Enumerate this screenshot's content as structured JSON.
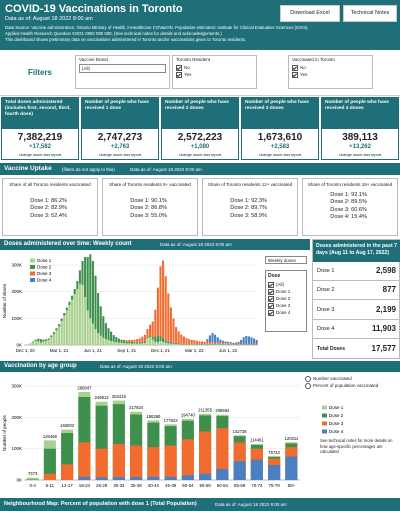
{
  "header": {
    "title": "COVID-19 Vaccinations in Toronto",
    "date": "Data as of: August 18 2022 8:00 am",
    "source": [
      "Data Source: Vaccine administration, Ontario Ministry of Health, inHealthcare COVaxON. Population estimates: Institute for Clinical Evaluative Sciences (ICES).",
      "Applied Health Research Question #2021 0950 080 000. (See technical notes for details and acknowledgements.)",
      "This dashboard shows preliminary data on vaccinations administered in Toronto and/or vaccinations given to Toronto residents."
    ],
    "buttons": [
      "Download Excel",
      "Technical Notes"
    ]
  },
  "filters": {
    "label": "Filters",
    "groups": [
      {
        "title": "Vaccine Brand",
        "control": "dropdown",
        "options": [
          "(All)"
        ]
      },
      {
        "title": "Toronto Resident",
        "control": "checkbox",
        "options": [
          "No",
          "Yes"
        ]
      },
      {
        "title": "Vaccinated in Toronto",
        "control": "checkbox",
        "options": [
          "No",
          "Yes"
        ]
      }
    ]
  },
  "kpis": [
    {
      "label": "Total doses administered (includes first, second, third, fourth dose)",
      "value": "7,382,219",
      "change": "+17,582",
      "note": "change since last report"
    },
    {
      "label": "Number of people who have received 1 dose",
      "value": "2,747,273",
      "change": "+2,763",
      "note": "change since last report"
    },
    {
      "label": "Number of people who have received 2 doses",
      "value": "2,572,223",
      "change": "+1,080",
      "note": "change since last report"
    },
    {
      "label": "Number of people who have received 3 doses",
      "value": "1,673,610",
      "change": "+2,583",
      "note": "change since last report"
    },
    {
      "label": "Number of people who have received 4 doses",
      "value": "389,113",
      "change": "+13,262",
      "note": "change since last report"
    }
  ],
  "uptake": {
    "title": "Vaccine Uptake",
    "note": "(filters do not apply to this)",
    "date": "Data as of: August 18 2022 8:00 am",
    "cards": [
      {
        "title": "Share of all Toronto residents vaccinated",
        "lines": [
          "Dose 1: 86.2%",
          "Dose 2: 82.9%",
          "Dose 3: 52.4%"
        ]
      },
      {
        "title": "Share of Toronto residents 5+ vaccinated",
        "lines": [
          "Dose 1: 90.1%",
          "Dose 2: 86.8%",
          "Dose 3: 55.0%"
        ]
      },
      {
        "title": "Share of Toronto residents 12+ vaccinated",
        "lines": [
          "Dose 1: 92.3%",
          "Dose 2: 89.7%",
          "Dose 3: 58.9%"
        ]
      },
      {
        "title": "Share of Toronto residents 18+ vaccinated",
        "lines": [
          "Dose 1: 92.1%",
          "Dose 2: 89.5%",
          "Dose 3: 60.6%",
          "Dose 4: 15.4%"
        ]
      }
    ]
  },
  "recent": {
    "title": "Doses administered in the past 7 days (Aug 11 to Aug 17, 2022)",
    "rows": [
      [
        "Dose 1",
        "2,598"
      ],
      [
        "Dose 2",
        "877"
      ],
      [
        "Dose 3",
        "2,199"
      ],
      [
        "Dose 4",
        "11,903"
      ],
      [
        "Total Doses",
        "17,577"
      ]
    ]
  },
  "weekly_controls": {
    "dropdown": "Weekly doses",
    "legend_title": "Dose",
    "options": [
      "(All)",
      "Dose 1",
      "Dose 2",
      "Dose 3",
      "Dose 4"
    ]
  },
  "age_controls": {
    "options": [
      "Number vaccinated",
      "Percent of population vaccinated"
    ],
    "note": "See technical notes for more details on how age-specific percentages are calculated"
  },
  "map": {
    "title": "Neighbourhood Map: Percent of population with dose 1 (Total Population)",
    "date": "Data as of: August 18 2022 8:00 am"
  },
  "chart_data": [
    {
      "type": "bar",
      "bar_mode": "stack",
      "title": "Doses administered over time: Weekly count",
      "subtitle": "Data as of: August 18 2022 8:00 am",
      "y_label": "Number of doses",
      "legend": "top-left",
      "grid": true,
      "categories": [
        "Dec 1, 20",
        null,
        null,
        null,
        null,
        null,
        null,
        null,
        null,
        null,
        null,
        null,
        null,
        "Mar 1, 21",
        null,
        null,
        null,
        null,
        null,
        null,
        null,
        null,
        null,
        null,
        null,
        null,
        "Jun 1, 21",
        null,
        null,
        null,
        null,
        null,
        null,
        null,
        null,
        null,
        null,
        null,
        null,
        "Sep 1, 21",
        null,
        null,
        null,
        null,
        null,
        null,
        null,
        null,
        null,
        null,
        null,
        null,
        "Dec 1, 21",
        null,
        null,
        null,
        null,
        null,
        null,
        null,
        null,
        null,
        null,
        null,
        null,
        "Mar 1, 22",
        null,
        null,
        null,
        null,
        null,
        null,
        null,
        null,
        null,
        null,
        null,
        null,
        "Jun 1, 22",
        null,
        null,
        null,
        null,
        null,
        null,
        null,
        null,
        null,
        null,
        null
      ],
      "ylim": [
        0,
        330000
      ],
      "yticks": [
        {
          "value": 0,
          "label": "0K"
        },
        {
          "value": 100000,
          "label": "100K"
        },
        {
          "value": 200000,
          "label": "200K"
        },
        {
          "value": 300000,
          "label": "300K"
        }
      ],
      "series": [
        {
          "name": "Dose 1",
          "color": "#a9d18e",
          "values": [
            0,
            3000,
            8000,
            12000,
            15000,
            14000,
            10000,
            12000,
            15000,
            20000,
            30000,
            40000,
            55000,
            70000,
            90000,
            110000,
            130000,
            150000,
            170000,
            190000,
            210000,
            230000,
            225000,
            180000,
            130000,
            100000,
            80000,
            60000,
            45000,
            35000,
            28000,
            22000,
            18000,
            15000,
            12000,
            10000,
            9000,
            8000,
            7000,
            6000,
            6000,
            5000,
            5000,
            5000,
            5000,
            6000,
            8000,
            25000,
            30000,
            20000,
            12000,
            10000,
            15000,
            12000,
            8000,
            6000,
            5000,
            4000,
            3000,
            3000,
            2000,
            2000,
            2000,
            2000,
            2000,
            2000,
            2000,
            2000,
            2000,
            2000,
            2000,
            2000,
            2000,
            2000,
            2000,
            2000,
            2000,
            2000,
            2000,
            2000,
            1000,
            1000,
            1000,
            1000,
            1000,
            1000,
            1000,
            1000,
            1000,
            1000
          ]
        },
        {
          "name": "Dose 2",
          "color": "#3f8f4f",
          "values": [
            0,
            0,
            0,
            2000,
            5000,
            10000,
            12000,
            8000,
            6000,
            5000,
            6000,
            8000,
            8000,
            8000,
            9000,
            10000,
            10000,
            12000,
            15000,
            20000,
            30000,
            50000,
            90000,
            150000,
            200000,
            240000,
            235000,
            200000,
            150000,
            110000,
            80000,
            60000,
            45000,
            35000,
            25000,
            20000,
            15000,
            12000,
            10000,
            8000,
            7000,
            6000,
            5000,
            5000,
            5000,
            5000,
            5000,
            5000,
            6000,
            8000,
            20000,
            25000,
            20000,
            15000,
            10000,
            8000,
            6000,
            5000,
            4000,
            3000,
            2000,
            2000,
            2000,
            2000,
            2000,
            2000,
            2000,
            2000,
            2000,
            2000,
            2000,
            2000,
            2000,
            2000,
            2000,
            2000,
            2000,
            2000,
            2000,
            2000,
            1000,
            1000,
            1000,
            1000,
            1000,
            1000,
            1000,
            1000,
            1000,
            1000
          ]
        },
        {
          "name": "Dose 3",
          "color": "#f26c2f",
          "values": [
            0,
            0,
            0,
            0,
            0,
            0,
            0,
            0,
            0,
            0,
            0,
            0,
            0,
            0,
            0,
            0,
            0,
            0,
            0,
            0,
            0,
            0,
            0,
            0,
            0,
            0,
            0,
            0,
            0,
            0,
            0,
            0,
            0,
            0,
            0,
            0,
            0,
            0,
            2000,
            4000,
            6000,
            8000,
            10000,
            12000,
            15000,
            20000,
            25000,
            30000,
            40000,
            60000,
            100000,
            180000,
            260000,
            290000,
            240000,
            180000,
            130000,
            90000,
            60000,
            45000,
            35000,
            28000,
            22000,
            18000,
            15000,
            14000,
            12000,
            10000,
            9000,
            8000,
            8000,
            7000,
            6000,
            5000,
            5000,
            4000,
            4000,
            3000,
            3000,
            3000,
            2000,
            2000,
            2000,
            2000,
            2000,
            2000,
            2000,
            2000,
            2000,
            2000
          ]
        },
        {
          "name": "Dose 4",
          "color": "#4a7fc1",
          "values": [
            0,
            0,
            0,
            0,
            0,
            0,
            0,
            0,
            0,
            0,
            0,
            0,
            0,
            0,
            0,
            0,
            0,
            0,
            0,
            0,
            0,
            0,
            0,
            0,
            0,
            0,
            0,
            0,
            0,
            0,
            0,
            0,
            0,
            0,
            0,
            0,
            0,
            0,
            0,
            0,
            0,
            0,
            0,
            0,
            0,
            0,
            0,
            0,
            0,
            0,
            0,
            0,
            0,
            0,
            0,
            0,
            0,
            0,
            0,
            0,
            0,
            0,
            0,
            0,
            0,
            0,
            0,
            0,
            0,
            0,
            10000,
            25000,
            35000,
            30000,
            20000,
            12000,
            8000,
            6000,
            5000,
            4000,
            4000,
            5000,
            8000,
            15000,
            25000,
            30000,
            28000,
            25000,
            20000,
            15000
          ]
        }
      ]
    },
    {
      "type": "bar",
      "bar_mode": "overlay",
      "title": "Vaccination by age group",
      "subtitle": "Data as of: August 18 2022 8:00 am",
      "y_label": "Number of people",
      "legend": "right",
      "grid": true,
      "data_labels": true,
      "categories": [
        "0-4",
        "5-11",
        "12-17",
        "18-24",
        "25-29",
        "30-34",
        "35-39",
        "40-44",
        "45-49",
        "50-54",
        "55-59",
        "60-64",
        "65-69",
        "70-74",
        "75-79",
        "80+"
      ],
      "ylim": [
        0,
        300000
      ],
      "yticks": [
        {
          "value": 0,
          "label": "0K"
        },
        {
          "value": 100000,
          "label": "100K"
        },
        {
          "value": 200000,
          "label": "200K"
        },
        {
          "value": 300000,
          "label": "300K"
        }
      ],
      "series": [
        {
          "name": "Dose 1",
          "color": "#a9d18e",
          "values": [
            7373,
            126469,
            160802,
            280847,
            249913,
            253419,
            217924,
            190290,
            177823,
            194740,
            211355,
            208594,
            142738,
            114461,
            75742,
            120311
          ]
        },
        {
          "name": "Dose 2",
          "color": "#3f8f4f",
          "values": [
            1500,
            100000,
            150000,
            265000,
            237000,
            242000,
            209000,
            183000,
            172000,
            189000,
            206000,
            204000,
            140000,
            112000,
            74000,
            117000
          ]
        },
        {
          "name": "Dose 3",
          "color": "#f26c2f",
          "values": [
            0,
            20000,
            50000,
            120000,
            100000,
            115000,
            110000,
            105000,
            110000,
            130000,
            155000,
            165000,
            120000,
            100000,
            68000,
            105000
          ]
        },
        {
          "name": "Dose 4",
          "color": "#4a7fc1",
          "values": [
            0,
            0,
            0,
            10000,
            8000,
            9000,
            9000,
            10000,
            10000,
            15000,
            20000,
            35000,
            60000,
            65000,
            48000,
            75000
          ]
        }
      ]
    }
  ]
}
